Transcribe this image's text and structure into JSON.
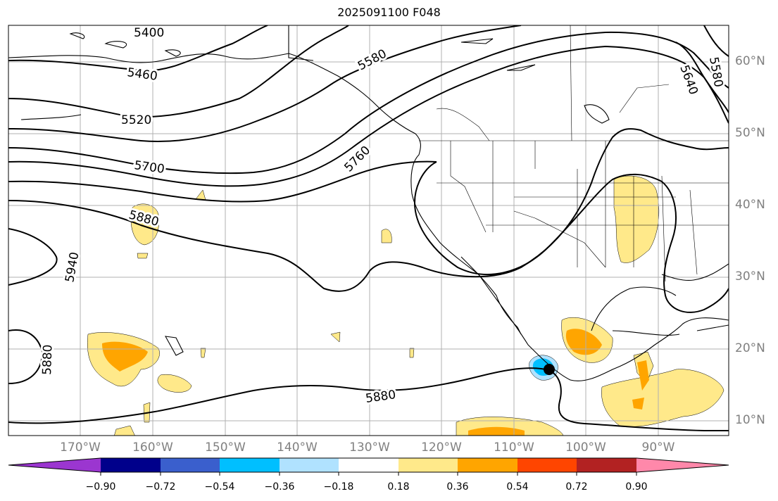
{
  "title": "2025091100 F048",
  "contour_labels": [
    "5400",
    "5460",
    "5520",
    "5580",
    "5640",
    "5580",
    "5700",
    "5760",
    "5880",
    "5940",
    "5880",
    "5880"
  ],
  "lat_labels": [
    "60°N",
    "50°N",
    "40°N",
    "30°N",
    "20°N",
    "10°N"
  ],
  "lon_labels": [
    "170°W",
    "160°W",
    "150°W",
    "140°W",
    "130°W",
    "120°W",
    "110°W",
    "100°W",
    "90°W"
  ],
  "colorbar": {
    "ticks": [
      "−0.90",
      "−0.72",
      "−0.54",
      "−0.36",
      "−0.18",
      "0.18",
      "0.36",
      "0.54",
      "0.72",
      "0.90"
    ],
    "colors": [
      "#9b36d0",
      "#00008b",
      "#3a5fcd",
      "#00bfff",
      "#b0e2ff",
      "#ffffff",
      "#ffe98a",
      "#ffa500",
      "#ff4500",
      "#b22222",
      "#ff88aa"
    ]
  },
  "colors": {
    "positive_light": "#ffe98a",
    "positive_mid": "#ffa500",
    "positive_strong": "#ff4500",
    "negative_light": "#b0e2ff",
    "negative_mid": "#00bfff",
    "grid": "#b0b0b0",
    "axis_label": "#808080"
  }
}
